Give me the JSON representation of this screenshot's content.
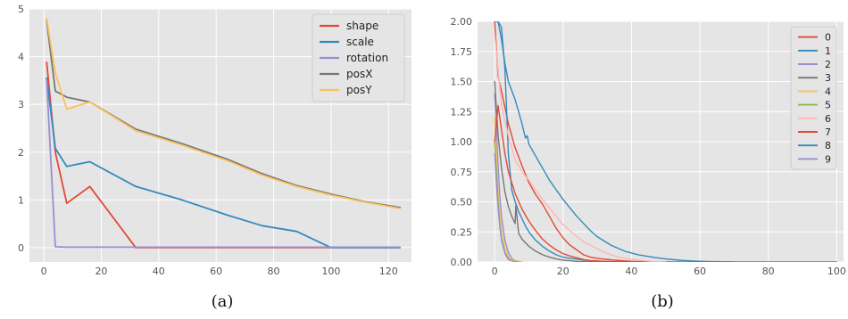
{
  "chart_data": [
    {
      "type": "line",
      "caption": "(a)",
      "xlim": [
        -5,
        128
      ],
      "ylim": [
        -0.3,
        5
      ],
      "xticks": [
        0,
        20,
        40,
        60,
        80,
        100,
        120
      ],
      "yticks": [
        0,
        1,
        2,
        3,
        4,
        5
      ],
      "grid": true,
      "legend": "top-right",
      "series": [
        {
          "name": "shape",
          "color": "#E24A33",
          "x": [
            1,
            4,
            8,
            16,
            32,
            64,
            100,
            124
          ],
          "y": [
            3.88,
            2.0,
            0.93,
            1.28,
            0.0,
            0.0,
            0.0,
            0.0
          ]
        },
        {
          "name": "scale",
          "color": "#348ABD",
          "x": [
            1,
            4,
            8,
            16,
            32,
            48,
            64,
            76,
            88,
            100,
            124
          ],
          "y": [
            3.55,
            2.08,
            1.7,
            1.8,
            1.28,
            1.0,
            0.68,
            0.46,
            0.34,
            0.0,
            0.0
          ]
        },
        {
          "name": "rotation",
          "color": "#988ED5",
          "x": [
            1,
            4,
            8,
            16,
            32,
            64,
            100,
            124
          ],
          "y": [
            3.5,
            0.02,
            0.01,
            0.01,
            0.01,
            0.01,
            0.01,
            0.01
          ]
        },
        {
          "name": "posX",
          "color": "#777777",
          "x": [
            1,
            4,
            8,
            16,
            32,
            48,
            64,
            76,
            88,
            100,
            112,
            124
          ],
          "y": [
            4.75,
            3.28,
            3.15,
            3.05,
            2.48,
            2.18,
            1.85,
            1.55,
            1.3,
            1.12,
            0.96,
            0.84
          ]
        },
        {
          "name": "posY",
          "color": "#FBC15E",
          "x": [
            1,
            4,
            8,
            16,
            32,
            48,
            64,
            76,
            88,
            100,
            112,
            124
          ],
          "y": [
            4.8,
            3.65,
            2.9,
            3.05,
            2.45,
            2.15,
            1.82,
            1.52,
            1.28,
            1.1,
            0.95,
            0.82
          ]
        }
      ]
    },
    {
      "type": "line",
      "caption": "(b)",
      "xlim": [
        -5,
        102
      ],
      "ylim": [
        0,
        2.0
      ],
      "xticks": [
        0,
        20,
        40,
        60,
        80,
        100
      ],
      "yticks": [
        0.0,
        0.25,
        0.5,
        0.75,
        1.0,
        1.25,
        1.5,
        1.75,
        2.0
      ],
      "ytick_labels": [
        "0.00",
        "0.25",
        "0.50",
        "0.75",
        "1.00",
        "1.25",
        "1.50",
        "1.75",
        "2.00"
      ],
      "grid": true,
      "legend": "top-right",
      "series": [
        {
          "name": "0",
          "color": "#E24A33",
          "x": [
            0,
            1,
            2,
            4,
            6,
            8,
            10,
            12,
            14,
            16,
            18,
            20,
            22,
            24,
            26,
            28,
            30,
            35,
            40,
            50
          ],
          "y": [
            2.0,
            1.55,
            1.42,
            1.15,
            0.95,
            0.8,
            0.66,
            0.56,
            0.48,
            0.38,
            0.28,
            0.2,
            0.14,
            0.1,
            0.06,
            0.04,
            0.03,
            0.015,
            0.005,
            0.0
          ]
        },
        {
          "name": "1",
          "color": "#348ABD",
          "x": [
            0,
            1,
            2,
            3,
            4,
            5,
            6,
            7,
            8,
            9,
            10,
            12,
            14,
            16,
            18,
            20,
            22,
            25,
            28,
            32,
            36,
            40,
            45,
            50,
            55,
            60,
            65,
            70
          ],
          "y": [
            2.0,
            2.0,
            1.95,
            1.6,
            0.9,
            0.6,
            0.5,
            0.42,
            0.36,
            0.3,
            0.25,
            0.18,
            0.13,
            0.09,
            0.06,
            0.04,
            0.03,
            0.02,
            0.01,
            0.005,
            0.0,
            0.0,
            0.0,
            0.0,
            0.0,
            0.0,
            0.0,
            0.0
          ]
        },
        {
          "name": "2",
          "color": "#988ED5",
          "x": [
            0,
            0.5,
            1,
            1.5,
            2,
            3,
            4,
            5,
            6,
            8
          ],
          "y": [
            1.4,
            1.1,
            0.8,
            0.55,
            0.38,
            0.18,
            0.08,
            0.03,
            0.01,
            0.0
          ]
        },
        {
          "name": "3",
          "color": "#777777",
          "x": [
            0,
            1,
            2,
            3,
            4,
            5,
            6,
            6.2,
            7,
            8,
            10,
            12,
            14,
            16,
            18,
            20,
            24,
            28,
            32
          ],
          "y": [
            1.5,
            1.05,
            0.78,
            0.58,
            0.46,
            0.38,
            0.32,
            0.47,
            0.24,
            0.19,
            0.13,
            0.09,
            0.06,
            0.04,
            0.025,
            0.015,
            0.005,
            0.002,
            0.0
          ]
        },
        {
          "name": "4",
          "color": "#FBC15E",
          "x": [
            0,
            0.5,
            1,
            1.5,
            2,
            3,
            4,
            5,
            6,
            8
          ],
          "y": [
            1.2,
            0.9,
            0.6,
            0.42,
            0.28,
            0.12,
            0.05,
            0.02,
            0.01,
            0.0
          ]
        },
        {
          "name": "5",
          "color": "#8EBA42",
          "x": [
            0,
            0.5,
            1,
            1.5,
            2,
            3,
            4,
            5,
            7
          ],
          "y": [
            1.0,
            0.75,
            0.5,
            0.32,
            0.2,
            0.08,
            0.03,
            0.01,
            0.0
          ]
        },
        {
          "name": "6",
          "color": "#FFB5B8",
          "x": [
            0,
            2,
            4,
            6,
            8,
            10,
            12,
            14,
            16,
            18,
            20,
            22,
            24,
            26,
            28,
            30,
            32,
            35,
            38,
            42,
            46,
            50
          ],
          "y": [
            1.9,
            1.3,
            1.05,
            0.85,
            0.75,
            0.68,
            0.6,
            0.52,
            0.45,
            0.38,
            0.31,
            0.26,
            0.21,
            0.17,
            0.14,
            0.11,
            0.08,
            0.05,
            0.03,
            0.015,
            0.005,
            0.0
          ]
        },
        {
          "name": "7",
          "color": "#E24A33",
          "x": [
            0,
            1,
            2,
            3,
            4,
            6,
            8,
            10,
            12,
            14,
            16,
            18,
            20,
            22,
            24,
            26,
            28,
            30,
            34,
            40
          ],
          "y": [
            1.0,
            1.3,
            1.1,
            0.9,
            0.75,
            0.57,
            0.44,
            0.34,
            0.26,
            0.19,
            0.14,
            0.1,
            0.07,
            0.05,
            0.035,
            0.02,
            0.012,
            0.008,
            0.003,
            0.0
          ]
        },
        {
          "name": "8",
          "color": "#348ABD",
          "x": [
            1,
            2,
            3,
            4,
            6,
            8,
            9,
            9.5,
            10,
            12,
            14,
            16,
            18,
            20,
            22,
            24,
            26,
            28,
            30,
            34,
            38,
            42,
            46,
            50,
            54,
            58,
            62,
            66,
            70,
            80,
            90,
            100
          ],
          "y": [
            2.0,
            1.85,
            1.65,
            1.5,
            1.35,
            1.15,
            1.03,
            1.05,
            0.98,
            0.88,
            0.78,
            0.68,
            0.6,
            0.52,
            0.45,
            0.38,
            0.32,
            0.26,
            0.21,
            0.14,
            0.09,
            0.06,
            0.04,
            0.025,
            0.015,
            0.008,
            0.004,
            0.002,
            0.001,
            0.0,
            0.0,
            0.0
          ]
        },
        {
          "name": "9",
          "color": "#988ED5",
          "x": [
            0,
            0.5,
            1,
            1.5,
            2,
            3,
            4,
            6
          ],
          "y": [
            0.9,
            0.65,
            0.45,
            0.3,
            0.18,
            0.07,
            0.02,
            0.0
          ]
        }
      ]
    }
  ]
}
